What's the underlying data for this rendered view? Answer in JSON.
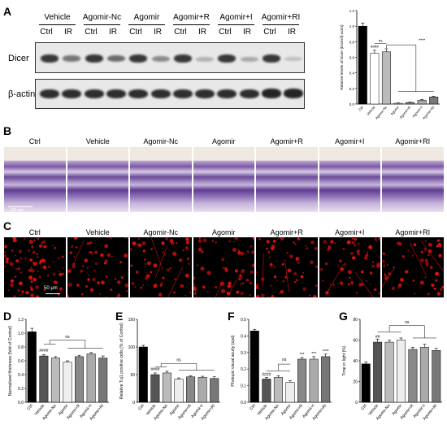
{
  "panels": {
    "A": "A",
    "B": "B",
    "C": "C",
    "D": "D",
    "E": "E",
    "F": "F",
    "G": "G"
  },
  "panelA": {
    "groups": [
      "Vehicle",
      "Agomir-Nc",
      "Agomir",
      "Agomir+R",
      "Agomir+I",
      "Agomir+RI"
    ],
    "lanes": [
      "Ctrl",
      "IR"
    ],
    "row1": "Dicer",
    "row2": "β-actin",
    "dicer_intensity": [
      0.85,
      0.55,
      0.85,
      0.6,
      0.85,
      0.45,
      0.85,
      0.25,
      0.85,
      0.3,
      0.85,
      0.2
    ],
    "actin_intensity": [
      0.9,
      0.9,
      0.9,
      0.9,
      0.9,
      0.9,
      0.9,
      0.9,
      0.9,
      0.9,
      0.95,
      0.95
    ]
  },
  "panelB": {
    "labels": [
      "Ctrl",
      "Vehicle",
      "Agomir-Nc",
      "Agomir",
      "Agomir+R",
      "Agomir+I",
      "Agomir+RI"
    ],
    "scale": "100 μm"
  },
  "panelC": {
    "labels": [
      "Ctrl",
      "Vehicle",
      "Agomir-Nc",
      "Agomir",
      "Agomir+R",
      "Agomir+I",
      "Agomir+RI"
    ],
    "scale": "50 μm"
  },
  "chart_data": [
    {
      "id": "A",
      "type": "bar",
      "ylabel": "Relative levels of Dicer (Dicer/β-actin)",
      "ylim": [
        0,
        1.2
      ],
      "yticks": [
        "0.0",
        "0.2",
        "0.4",
        "0.6",
        "0.8",
        "1.0",
        "1.2"
      ],
      "categories": [
        "Ctrl",
        "Vehicle",
        "Agomir-Nc",
        "Agomir",
        "Agomir+R",
        "Agomir+I",
        "Agomir+RI"
      ],
      "values": [
        1.0,
        0.65,
        0.67,
        0.01,
        0.02,
        0.05,
        0.09
      ],
      "errors": [
        0.04,
        0.04,
        0.04,
        0.005,
        0.005,
        0.01,
        0.01
      ],
      "colors": [
        "#000000",
        "#ffffff",
        "#bbbbbb",
        "#eeeeee",
        "#888888",
        "#aaaaaa",
        "#777777"
      ],
      "annotations": [
        "####",
        "ns",
        "****"
      ]
    },
    {
      "id": "D",
      "type": "bar",
      "ylabel": "Normalized thickness (fold of Control)",
      "ylim": [
        0,
        1.2
      ],
      "yticks": [
        "0.0",
        "0.2",
        "0.4",
        "0.6",
        "0.8",
        "1.0",
        "1.2"
      ],
      "categories": [
        "Ctrl",
        "Vehicle",
        "Agomir-Nc",
        "Agomir",
        "Agomir+R",
        "Agomir+I",
        "Agomir+RI"
      ],
      "values": [
        1.02,
        0.67,
        0.64,
        0.58,
        0.66,
        0.7,
        0.64
      ],
      "errors": [
        0.05,
        0.02,
        0.02,
        0.02,
        0.02,
        0.02,
        0.03
      ],
      "colors": [
        "#000000",
        "#555555",
        "#bbbbbb",
        "#eeeeee",
        "#888888",
        "#aaaaaa",
        "#777777"
      ],
      "annotations": [
        "####",
        "ns"
      ]
    },
    {
      "id": "E",
      "type": "bar",
      "ylabel": "Relative Tuj1 positive cells (% of Control)",
      "ylim": [
        0,
        150
      ],
      "yticks": [
        "0",
        "50",
        "100",
        "150"
      ],
      "categories": [
        "Ctrl",
        "Vehicle",
        "Agomir-Nc",
        "Agomir",
        "Agomir+R",
        "Agomir+I",
        "Agomir+RI"
      ],
      "values": [
        100,
        50,
        53,
        42,
        46,
        45,
        43
      ],
      "errors": [
        3,
        3,
        3,
        2,
        2,
        2,
        3
      ],
      "colors": [
        "#000000",
        "#555555",
        "#bbbbbb",
        "#eeeeee",
        "#888888",
        "#aaaaaa",
        "#777777"
      ],
      "annotations": [
        "####",
        "ns"
      ]
    },
    {
      "id": "F",
      "type": "bar",
      "ylabel": "Photopic visual acuity (cpd)",
      "ylim": [
        0,
        0.5
      ],
      "yticks": [
        "0.0",
        "0.1",
        "0.2",
        "0.3",
        "0.4",
        "0.5"
      ],
      "categories": [
        "Ctrl",
        "Vehicle",
        "Agomir-Nc",
        "Agomir",
        "Agomir+R",
        "Agomir+I",
        "Agomir+RI"
      ],
      "values": [
        0.43,
        0.14,
        0.15,
        0.12,
        0.26,
        0.26,
        0.275
      ],
      "errors": [
        0.01,
        0.01,
        0.01,
        0.01,
        0.01,
        0.015,
        0.015
      ],
      "colors": [
        "#000000",
        "#555555",
        "#bbbbbb",
        "#eeeeee",
        "#888888",
        "#aaaaaa",
        "#777777"
      ],
      "annotations": [
        "####",
        "ns",
        "***",
        "***",
        "****"
      ]
    },
    {
      "id": "G",
      "type": "bar",
      "ylabel": "Time in light (%)",
      "ylim": [
        0,
        80
      ],
      "yticks": [
        "0",
        "20",
        "40",
        "60",
        "80"
      ],
      "categories": [
        "Ctrl",
        "Vehicle",
        "Agomir-Nc",
        "Agomir",
        "Agomir+R",
        "Agomir+I",
        "Agomir+RI"
      ],
      "values": [
        37,
        58,
        58,
        60,
        51,
        53,
        50
      ],
      "errors": [
        2,
        3,
        2,
        2,
        2,
        3,
        2
      ],
      "colors": [
        "#000000",
        "#555555",
        "#bbbbbb",
        "#eeeeee",
        "#888888",
        "#aaaaaa",
        "#777777"
      ],
      "annotations": [
        "##",
        "ns"
      ]
    }
  ]
}
